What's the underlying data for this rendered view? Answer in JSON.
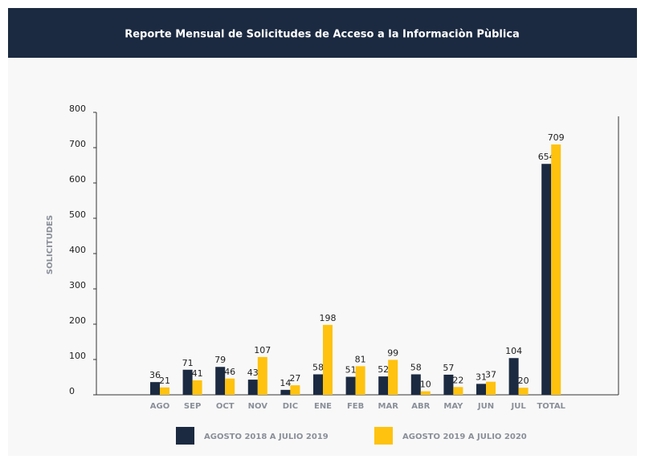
{
  "chart_data": {
    "type": "bar",
    "title": "Reporte Mensual de Solicitudes de Acceso a la Informaciòn Pùblica",
    "ylabel": "SOLICITUDES",
    "categories": [
      "AGO",
      "SEP",
      "OCT",
      "NOV",
      "DIC",
      "ENE",
      "FEB",
      "MAR",
      "ABR",
      "MAY",
      "JUN",
      "JUL",
      "TOTAL"
    ],
    "series": [
      {
        "name": "AGOSTO 2018 A JULIO 2019",
        "color": "#1b2a41",
        "values": [
          36,
          71,
          79,
          43,
          14,
          58,
          51,
          52,
          58,
          57,
          31,
          104,
          654
        ]
      },
      {
        "name": "AGOSTO 2019 A JULIO 2020",
        "color": "#ffc20e",
        "values": [
          21,
          41,
          46,
          107,
          27,
          198,
          81,
          99,
          10,
          22,
          37,
          20,
          709
        ]
      }
    ],
    "ylim": [
      0,
      800
    ],
    "yticks": [
      0,
      100,
      200,
      300,
      400,
      500,
      600,
      700,
      800
    ],
    "grid": false
  }
}
